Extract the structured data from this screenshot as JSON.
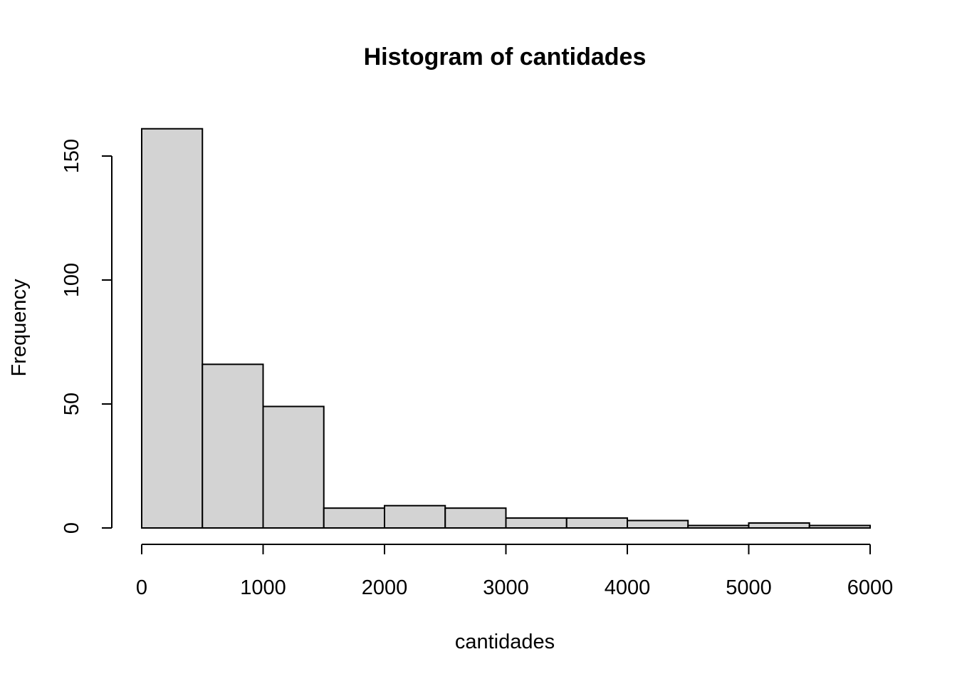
{
  "chart_data": {
    "type": "bar",
    "title": "Histogram of cantidades",
    "xlabel": "cantidades",
    "ylabel": "Frequency",
    "bins": [
      {
        "start": 0,
        "end": 500,
        "count": 161
      },
      {
        "start": 500,
        "end": 1000,
        "count": 66
      },
      {
        "start": 1000,
        "end": 1500,
        "count": 49
      },
      {
        "start": 1500,
        "end": 2000,
        "count": 8
      },
      {
        "start": 2000,
        "end": 2500,
        "count": 9
      },
      {
        "start": 2500,
        "end": 3000,
        "count": 8
      },
      {
        "start": 3000,
        "end": 3500,
        "count": 4
      },
      {
        "start": 3500,
        "end": 4000,
        "count": 4
      },
      {
        "start": 4000,
        "end": 4500,
        "count": 3
      },
      {
        "start": 4500,
        "end": 5000,
        "count": 1
      },
      {
        "start": 5000,
        "end": 5500,
        "count": 2
      },
      {
        "start": 5500,
        "end": 6000,
        "count": 1
      }
    ],
    "xlim": [
      0,
      6000
    ],
    "ylim": [
      0,
      161
    ],
    "x_ticks": [
      "0",
      "1000",
      "2000",
      "3000",
      "4000",
      "5000",
      "6000"
    ],
    "y_ticks": [
      "0",
      "50",
      "100",
      "150"
    ],
    "colors": {
      "bar_fill": "#d3d3d3",
      "bar_stroke": "#000000"
    },
    "grid": false
  }
}
